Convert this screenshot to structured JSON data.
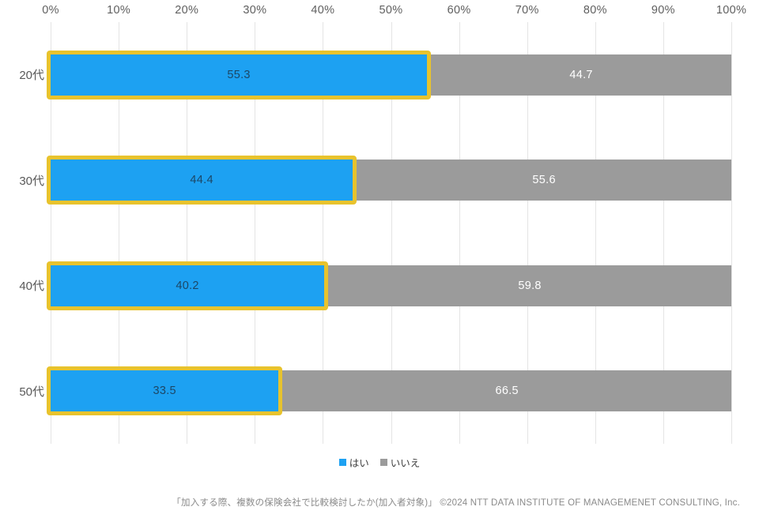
{
  "chart_data": {
    "type": "bar",
    "orientation": "horizontal",
    "stacked": true,
    "categories": [
      "20代",
      "30代",
      "40代",
      "50代"
    ],
    "series": [
      {
        "name": "はい",
        "color": "#1DA1F2",
        "values": [
          55.3,
          44.4,
          40.2,
          33.5
        ]
      },
      {
        "name": "いいえ",
        "color": "#9B9B9B",
        "values": [
          44.7,
          55.6,
          59.8,
          66.5
        ]
      }
    ],
    "x_ticks": [
      "0%",
      "10%",
      "20%",
      "30%",
      "40%",
      "50%",
      "60%",
      "70%",
      "80%",
      "90%",
      "100%"
    ],
    "xlim": [
      0,
      100
    ],
    "grid": true,
    "legend_position": "bottom",
    "highlight_border_color": "#E8C32D",
    "value_label_color_yes": "#1C4766",
    "value_label_color_no": "#FFFFFF",
    "gridline_color": "#E4E4E4"
  },
  "footer": {
    "caption": "「加入する際、複数の保険会社で比較検討したか(加入者対象)」 ©2024 NTT DATA INSTITUTE OF MANAGEMENET CONSULTING, Inc."
  }
}
